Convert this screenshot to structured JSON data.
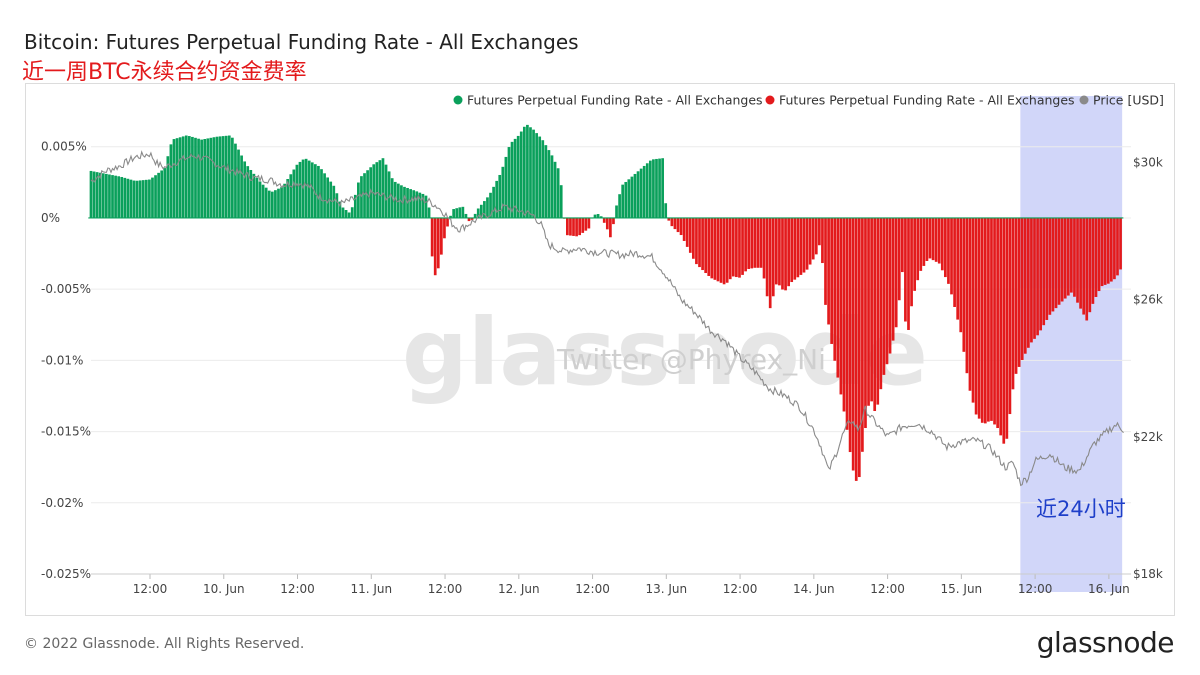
{
  "header": {
    "title": "Bitcoin: Futures Perpetual Funding Rate - All Exchanges",
    "subtitle": "近一周BTC永续合约资金费率"
  },
  "footer": {
    "copyright": "© 2022 Glassnode. All Rights Reserved.",
    "logo": "glassnode"
  },
  "watermark": {
    "logo": "glassnode",
    "twitter": "Twitter @Phyrex_Ni"
  },
  "highlight": {
    "label": "近24小时",
    "color": "#c6ccf7",
    "x_start": 5.9,
    "x_end": 6.59
  },
  "colors": {
    "positive": "#0aa05b",
    "negative": "#e31a1c",
    "price": "#8a8a8a",
    "label_blue": "#1e3fc9"
  },
  "chart_data": {
    "type": "bar",
    "title": "Bitcoin: Futures Perpetual Funding Rate - All Exchanges",
    "legend": {
      "placement": "top-right",
      "entries": [
        {
          "name": "Futures Perpetual Funding Rate - All Exchanges",
          "color": "#0aa05b"
        },
        {
          "name": "Futures Perpetual Funding Rate - All Exchanges",
          "color": "#e31a1c"
        },
        {
          "name": "Price [USD]",
          "color": "#8a8a8a"
        }
      ]
    },
    "x_axis": {
      "range": [
        -0.4,
        6.65
      ],
      "ticks": [
        {
          "x": 0,
          "label": "12:00"
        },
        {
          "x": 0.5,
          "label": "10. Jun"
        },
        {
          "x": 1,
          "label": "12:00"
        },
        {
          "x": 1.5,
          "label": "11. Jun"
        },
        {
          "x": 2,
          "label": "12:00"
        },
        {
          "x": 2.5,
          "label": "12. Jun"
        },
        {
          "x": 3,
          "label": "12:00"
        },
        {
          "x": 3.5,
          "label": "13. Jun"
        },
        {
          "x": 4,
          "label": "12:00"
        },
        {
          "x": 4.5,
          "label": "14. Jun"
        },
        {
          "x": 5,
          "label": "12:00"
        },
        {
          "x": 5.5,
          "label": "15. Jun"
        },
        {
          "x": 6,
          "label": "12:00"
        },
        {
          "x": 6.5,
          "label": "16. Jun"
        }
      ]
    },
    "y_left": {
      "range": [
        -0.025,
        0.008
      ],
      "ticks": [
        {
          "v": 0.005,
          "label": "0.005%"
        },
        {
          "v": 0,
          "label": "0%"
        },
        {
          "v": -0.005,
          "label": "-0.005%"
        },
        {
          "v": -0.01,
          "label": "-0.01%"
        },
        {
          "v": -0.015,
          "label": "-0.015%"
        },
        {
          "v": -0.02,
          "label": "-0.02%"
        },
        {
          "v": -0.025,
          "label": "-0.025%"
        }
      ]
    },
    "y_right": {
      "range": [
        18000,
        31700
      ],
      "ticks": [
        {
          "v": 30000,
          "label": "$30k"
        },
        {
          "v": 26000,
          "label": "$26k"
        },
        {
          "v": 22000,
          "label": "$22k"
        },
        {
          "v": 18000,
          "label": "$18k"
        }
      ]
    },
    "funding_keys": [
      [
        -0.4,
        0.0033
      ],
      [
        -0.3,
        0.0031
      ],
      [
        -0.2,
        0.0029
      ],
      [
        -0.1,
        0.0026
      ],
      [
        0.0,
        0.0027
      ],
      [
        0.1,
        0.0035
      ],
      [
        0.15,
        0.0055
      ],
      [
        0.25,
        0.0058
      ],
      [
        0.35,
        0.0055
      ],
      [
        0.45,
        0.0057
      ],
      [
        0.55,
        0.0058
      ],
      [
        0.6,
        0.0048
      ],
      [
        0.65,
        0.0038
      ],
      [
        0.75,
        0.0025
      ],
      [
        0.82,
        0.0018
      ],
      [
        0.9,
        0.0022
      ],
      [
        1.0,
        0.0038
      ],
      [
        1.05,
        0.0042
      ],
      [
        1.15,
        0.0036
      ],
      [
        1.25,
        0.0022
      ],
      [
        1.3,
        0.0008
      ],
      [
        1.36,
        0.0003
      ],
      [
        1.42,
        0.0028
      ],
      [
        1.52,
        0.0038
      ],
      [
        1.58,
        0.0042
      ],
      [
        1.65,
        0.0026
      ],
      [
        1.72,
        0.0022
      ],
      [
        1.8,
        0.0019
      ],
      [
        1.87,
        0.0016
      ],
      [
        1.9,
        0.0004
      ],
      [
        1.91,
        -0.0025
      ],
      [
        1.93,
        -0.0041
      ],
      [
        1.96,
        -0.0034
      ],
      [
        2.0,
        -0.0012
      ],
      [
        2.05,
        0.0006
      ],
      [
        2.12,
        0.0008
      ],
      [
        2.17,
        -0.0004
      ],
      [
        2.22,
        0.0006
      ],
      [
        2.3,
        0.0016
      ],
      [
        2.38,
        0.0032
      ],
      [
        2.44,
        0.0052
      ],
      [
        2.5,
        0.0058
      ],
      [
        2.55,
        0.0066
      ],
      [
        2.6,
        0.0062
      ],
      [
        2.66,
        0.0055
      ],
      [
        2.72,
        0.0045
      ],
      [
        2.78,
        0.0032
      ],
      [
        2.8,
        0.0008
      ],
      [
        2.82,
        -0.0012
      ],
      [
        2.9,
        -0.0013
      ],
      [
        2.98,
        -0.0007
      ],
      [
        3.0,
        0.0002
      ],
      [
        3.05,
        0.0003
      ],
      [
        3.1,
        -0.0008
      ],
      [
        3.13,
        -0.0016
      ],
      [
        3.15,
        0.0004
      ],
      [
        3.2,
        0.0023
      ],
      [
        3.3,
        0.0032
      ],
      [
        3.4,
        0.0041
      ],
      [
        3.48,
        0.0042
      ],
      [
        3.5,
        0.0002
      ],
      [
        3.53,
        -0.0005
      ],
      [
        3.6,
        -0.0012
      ],
      [
        3.7,
        -0.0032
      ],
      [
        3.8,
        -0.0042
      ],
      [
        3.9,
        -0.0047
      ],
      [
        3.95,
        -0.0041
      ],
      [
        4.0,
        -0.0042
      ],
      [
        4.05,
        -0.0036
      ],
      [
        4.1,
        -0.0035
      ],
      [
        4.15,
        -0.0035
      ],
      [
        4.2,
        -0.0065
      ],
      [
        4.25,
        -0.0045
      ],
      [
        4.3,
        -0.0052
      ],
      [
        4.35,
        -0.0045
      ],
      [
        4.45,
        -0.0037
      ],
      [
        4.52,
        -0.0025
      ],
      [
        4.55,
        -0.0015
      ],
      [
        4.57,
        -0.0055
      ],
      [
        4.62,
        -0.0088
      ],
      [
        4.68,
        -0.0122
      ],
      [
        4.72,
        -0.0145
      ],
      [
        4.76,
        -0.0175
      ],
      [
        4.8,
        -0.0189
      ],
      [
        4.84,
        -0.0155
      ],
      [
        4.88,
        -0.0125
      ],
      [
        4.92,
        -0.0138
      ],
      [
        4.97,
        -0.0112
      ],
      [
        5.02,
        -0.0094
      ],
      [
        5.06,
        -0.0076
      ],
      [
        5.1,
        -0.0038
      ],
      [
        5.13,
        -0.0088
      ],
      [
        5.17,
        -0.0056
      ],
      [
        5.22,
        -0.0038
      ],
      [
        5.28,
        -0.0028
      ],
      [
        5.35,
        -0.0032
      ],
      [
        5.42,
        -0.0048
      ],
      [
        5.5,
        -0.0082
      ],
      [
        5.55,
        -0.0118
      ],
      [
        5.6,
        -0.0138
      ],
      [
        5.65,
        -0.0145
      ],
      [
        5.7,
        -0.0142
      ],
      [
        5.75,
        -0.0148
      ],
      [
        5.8,
        -0.0162
      ],
      [
        5.86,
        -0.0112
      ],
      [
        5.92,
        -0.0098
      ],
      [
        5.97,
        -0.0088
      ],
      [
        6.02,
        -0.0082
      ],
      [
        6.1,
        -0.0068
      ],
      [
        6.18,
        -0.0059
      ],
      [
        6.25,
        -0.0052
      ],
      [
        6.3,
        -0.0062
      ],
      [
        6.35,
        -0.0072
      ],
      [
        6.4,
        -0.0058
      ],
      [
        6.45,
        -0.0048
      ],
      [
        6.5,
        -0.0046
      ],
      [
        6.55,
        -0.0042
      ],
      [
        6.58,
        -0.0036
      ]
    ],
    "price_keys": [
      [
        -0.4,
        29450
      ],
      [
        -0.3,
        29750
      ],
      [
        -0.2,
        29900
      ],
      [
        -0.1,
        30150
      ],
      [
        0.0,
        30250
      ],
      [
        0.05,
        29950
      ],
      [
        0.1,
        29850
      ],
      [
        0.2,
        30050
      ],
      [
        0.3,
        30200
      ],
      [
        0.4,
        30050
      ],
      [
        0.5,
        29850
      ],
      [
        0.6,
        29700
      ],
      [
        0.7,
        29550
      ],
      [
        0.8,
        29500
      ],
      [
        0.9,
        29350
      ],
      [
        1.0,
        29400
      ],
      [
        1.08,
        29300
      ],
      [
        1.15,
        29000
      ],
      [
        1.22,
        28900
      ],
      [
        1.3,
        28800
      ],
      [
        1.4,
        28950
      ],
      [
        1.5,
        29100
      ],
      [
        1.6,
        29000
      ],
      [
        1.7,
        28900
      ],
      [
        1.8,
        28950
      ],
      [
        1.9,
        28850
      ],
      [
        1.95,
        28700
      ],
      [
        2.0,
        28500
      ],
      [
        2.05,
        28200
      ],
      [
        2.1,
        28050
      ],
      [
        2.2,
        28300
      ],
      [
        2.3,
        28500
      ],
      [
        2.4,
        28700
      ],
      [
        2.5,
        28600
      ],
      [
        2.6,
        28450
      ],
      [
        2.65,
        28200
      ],
      [
        2.7,
        27600
      ],
      [
        2.8,
        27400
      ],
      [
        2.9,
        27500
      ],
      [
        3.0,
        27400
      ],
      [
        3.1,
        27350
      ],
      [
        3.2,
        27300
      ],
      [
        3.3,
        27350
      ],
      [
        3.4,
        27250
      ],
      [
        3.5,
        26700
      ],
      [
        3.6,
        26000
      ],
      [
        3.7,
        25600
      ],
      [
        3.8,
        25100
      ],
      [
        3.9,
        24800
      ],
      [
        4.0,
        24300
      ],
      [
        4.1,
        23900
      ],
      [
        4.2,
        23400
      ],
      [
        4.3,
        23200
      ],
      [
        4.4,
        22900
      ],
      [
        4.5,
        22200
      ],
      [
        4.55,
        21700
      ],
      [
        4.6,
        21000
      ],
      [
        4.65,
        21500
      ],
      [
        4.7,
        22100
      ],
      [
        4.75,
        22500
      ],
      [
        4.8,
        22200
      ],
      [
        4.85,
        22800
      ],
      [
        4.9,
        22500
      ],
      [
        5.0,
        22000
      ],
      [
        5.1,
        22300
      ],
      [
        5.2,
        22400
      ],
      [
        5.3,
        22150
      ],
      [
        5.4,
        21700
      ],
      [
        5.5,
        21850
      ],
      [
        5.6,
        21900
      ],
      [
        5.7,
        21650
      ],
      [
        5.8,
        21100
      ],
      [
        5.85,
        21250
      ],
      [
        5.9,
        20650
      ],
      [
        5.95,
        20800
      ],
      [
        6.0,
        21300
      ],
      [
        6.1,
        21500
      ],
      [
        6.2,
        21100
      ],
      [
        6.3,
        21000
      ],
      [
        6.4,
        21800
      ],
      [
        6.5,
        22200
      ],
      [
        6.55,
        22350
      ],
      [
        6.6,
        22200
      ]
    ]
  }
}
